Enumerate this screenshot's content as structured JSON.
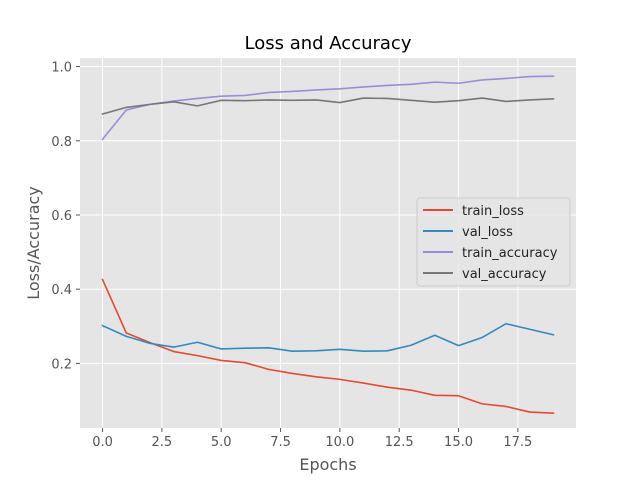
{
  "chart_data": {
    "type": "line",
    "title": "Loss and Accuracy",
    "xlabel": "Epochs",
    "ylabel": "Loss/Accuracy",
    "xlim": [
      -0.95,
      19.95
    ],
    "ylim": [
      0.026,
      1.023
    ],
    "x_ticks": [
      0,
      2.5,
      5,
      7.5,
      10,
      12.5,
      15,
      17.5
    ],
    "x_tick_labels": [
      "0.0",
      "2.5",
      "5.0",
      "7.5",
      "10.0",
      "12.5",
      "15.0",
      "17.5"
    ],
    "y_ticks": [
      0.2,
      0.4,
      0.6,
      0.8,
      1.0
    ],
    "y_tick_labels": [
      "0.2",
      "0.4",
      "0.6",
      "0.8",
      "1.0"
    ],
    "grid": true,
    "legend_position": "center-right",
    "x": [
      0,
      1,
      2,
      3,
      4,
      5,
      6,
      7,
      8,
      9,
      10,
      11,
      12,
      13,
      14,
      15,
      16,
      17,
      18,
      19
    ],
    "series": [
      {
        "name": "train_loss",
        "color": "#E24A33",
        "values": [
          0.426,
          0.282,
          0.256,
          0.232,
          0.221,
          0.208,
          0.202,
          0.184,
          0.173,
          0.164,
          0.157,
          0.147,
          0.136,
          0.128,
          0.114,
          0.113,
          0.091,
          0.084,
          0.069,
          0.066
        ]
      },
      {
        "name": "val_loss",
        "color": "#348ABD",
        "values": [
          0.302,
          0.273,
          0.254,
          0.244,
          0.257,
          0.239,
          0.241,
          0.242,
          0.233,
          0.234,
          0.238,
          0.233,
          0.234,
          0.249,
          0.276,
          0.248,
          0.27,
          0.307,
          0.292,
          0.277
        ]
      },
      {
        "name": "train_accuracy",
        "color": "#988ED5",
        "values": [
          0.804,
          0.883,
          0.898,
          0.907,
          0.914,
          0.92,
          0.922,
          0.93,
          0.933,
          0.937,
          0.94,
          0.945,
          0.949,
          0.952,
          0.958,
          0.955,
          0.964,
          0.968,
          0.973,
          0.974
        ]
      },
      {
        "name": "val_accuracy",
        "color": "#777777",
        "values": [
          0.872,
          0.89,
          0.898,
          0.905,
          0.894,
          0.909,
          0.908,
          0.91,
          0.909,
          0.91,
          0.903,
          0.915,
          0.914,
          0.909,
          0.904,
          0.908,
          0.915,
          0.906,
          0.91,
          0.913
        ]
      }
    ]
  }
}
